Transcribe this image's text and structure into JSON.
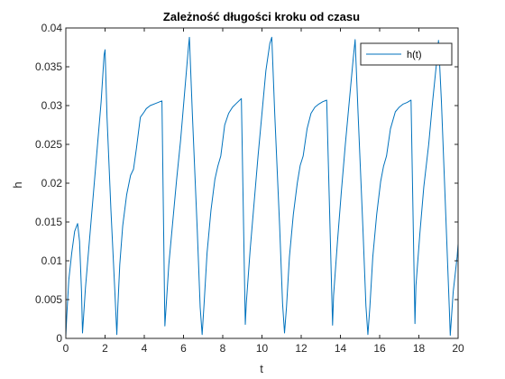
{
  "chart_data": {
    "type": "line",
    "title": "Zależność długości kroku od czasu",
    "xlabel": "t",
    "ylabel": "h",
    "xlim": [
      0,
      20
    ],
    "ylim": [
      0,
      0.04
    ],
    "x_ticks": [
      0,
      2,
      4,
      6,
      8,
      10,
      12,
      14,
      16,
      18,
      20
    ],
    "x_tick_labels": [
      "0",
      "2",
      "4",
      "6",
      "8",
      "10",
      "12",
      "14",
      "16",
      "18",
      "20"
    ],
    "y_ticks": [
      0,
      0.005,
      0.01,
      0.015,
      0.02,
      0.025,
      0.03,
      0.035,
      0.04
    ],
    "y_tick_labels": [
      "0",
      "0.005",
      "0.01",
      "0.015",
      "0.02",
      "0.025",
      "0.03",
      "0.035",
      "0.04"
    ],
    "grid": false,
    "legend_position": "top-right",
    "series": [
      {
        "name": "h(t)",
        "color": "#0072bd",
        "x": [
          0,
          0.05,
          0.15,
          0.3,
          0.45,
          0.6,
          0.7,
          0.8,
          0.85,
          1.0,
          1.2,
          1.4,
          1.6,
          1.8,
          1.95,
          2.0,
          2.1,
          2.3,
          2.5,
          2.6,
          2.65,
          2.75,
          2.9,
          3.1,
          3.3,
          3.45,
          3.6,
          3.8,
          4.0,
          4.1,
          4.3,
          4.6,
          4.9,
          5.05,
          5.25,
          5.45,
          5.65,
          5.85,
          6.05,
          6.25,
          6.3,
          6.45,
          6.7,
          6.85,
          6.95,
          7.05,
          7.2,
          7.4,
          7.6,
          7.75,
          7.9,
          8.1,
          8.3,
          8.5,
          8.7,
          8.95,
          9.15,
          9.2,
          9.4,
          9.6,
          9.8,
          10.0,
          10.2,
          10.4,
          10.5,
          10.65,
          10.9,
          11.05,
          11.15,
          11.25,
          11.4,
          11.6,
          11.8,
          11.95,
          12.1,
          12.3,
          12.5,
          12.7,
          12.9,
          13.1,
          13.3,
          13.6,
          13.65,
          13.85,
          14.05,
          14.25,
          14.45,
          14.65,
          14.75,
          14.9,
          15.15,
          15.3,
          15.4,
          15.5,
          15.65,
          15.85,
          16.05,
          16.2,
          16.35,
          16.55,
          16.8,
          17.0,
          17.2,
          17.4,
          17.6,
          17.8,
          17.85,
          18.05,
          18.25,
          18.5,
          18.7,
          18.9,
          19.0,
          19.15,
          19.4,
          19.55,
          19.6,
          19.75,
          19.95,
          20.0
        ],
        "values": [
          0.0003,
          0.003,
          0.0075,
          0.011,
          0.0138,
          0.0148,
          0.0125,
          0.006,
          0.0007,
          0.0065,
          0.0125,
          0.0185,
          0.0245,
          0.0305,
          0.0365,
          0.0372,
          0.0285,
          0.0165,
          0.006,
          0.0005,
          0.004,
          0.0095,
          0.0145,
          0.0185,
          0.021,
          0.0218,
          0.0245,
          0.0285,
          0.0292,
          0.0296,
          0.03,
          0.0303,
          0.0306,
          0.0016,
          0.0095,
          0.015,
          0.0205,
          0.0255,
          0.0315,
          0.0375,
          0.0388,
          0.029,
          0.014,
          0.004,
          0.0005,
          0.0045,
          0.011,
          0.0165,
          0.0205,
          0.0222,
          0.0235,
          0.0275,
          0.029,
          0.0298,
          0.0303,
          0.0309,
          0.0018,
          0.0045,
          0.0115,
          0.0175,
          0.0235,
          0.029,
          0.0345,
          0.038,
          0.0388,
          0.029,
          0.0145,
          0.0045,
          0.0007,
          0.004,
          0.0105,
          0.016,
          0.02,
          0.0223,
          0.0235,
          0.027,
          0.029,
          0.0298,
          0.0302,
          0.0305,
          0.0307,
          0.0017,
          0.0055,
          0.0125,
          0.019,
          0.025,
          0.0305,
          0.036,
          0.0385,
          0.029,
          0.014,
          0.0042,
          0.0005,
          0.004,
          0.0105,
          0.016,
          0.0202,
          0.0222,
          0.0235,
          0.027,
          0.0292,
          0.0298,
          0.0302,
          0.0304,
          0.0307,
          0.0019,
          0.0068,
          0.0135,
          0.0195,
          0.025,
          0.0305,
          0.0355,
          0.0384,
          0.0305,
          0.014,
          0.004,
          0.0004,
          0.006,
          0.0105,
          0.0122
        ]
      }
    ]
  }
}
